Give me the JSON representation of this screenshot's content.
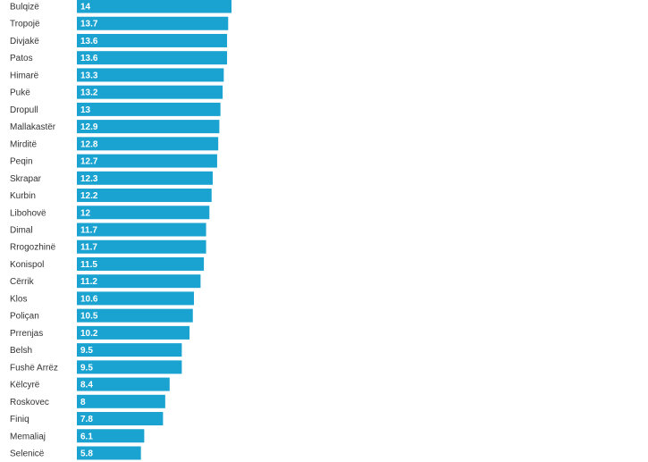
{
  "chart_data": {
    "type": "bar",
    "orientation": "horizontal",
    "categories": [
      "Bulqizë",
      "Tropojë",
      "Divjakë",
      "Patos",
      "Himarë",
      "Pukë",
      "Dropull",
      "Mallakastër",
      "Mirditë",
      "Peqin",
      "Skrapar",
      "Kurbin",
      "Libohovë",
      "Dimal",
      "Rrogozhinë",
      "Konispol",
      "Cërrik",
      "Klos",
      "Poliçan",
      "Prrenjas",
      "Belsh",
      "Fushë Arrëz",
      "Këlcyrë",
      "Roskovec",
      "Finiq",
      "Memaliaj",
      "Selenicë"
    ],
    "values": [
      14,
      13.7,
      13.6,
      13.6,
      13.3,
      13.2,
      13,
      12.9,
      12.8,
      12.7,
      12.3,
      12.2,
      12,
      11.7,
      11.7,
      11.5,
      11.2,
      10.6,
      10.5,
      10.2,
      9.5,
      9.5,
      8.4,
      8,
      7.8,
      6.1,
      5.8
    ],
    "value_labels": [
      "14",
      "13.7",
      "13.6",
      "13.6",
      "13.3",
      "13.2",
      "13",
      "12.9",
      "12.8",
      "12.7",
      "12.3",
      "12.2",
      "12",
      "11.7",
      "11.7",
      "11.5",
      "11.2",
      "10.6",
      "10.5",
      "10.2",
      "9.5",
      "9.5",
      "8.4",
      "8",
      "7.8",
      "6.1",
      "5.8"
    ],
    "xlim": [
      0,
      14
    ],
    "grid": false,
    "bar_color": "#1aa3d1",
    "title": "",
    "xlabel": "",
    "ylabel": ""
  }
}
